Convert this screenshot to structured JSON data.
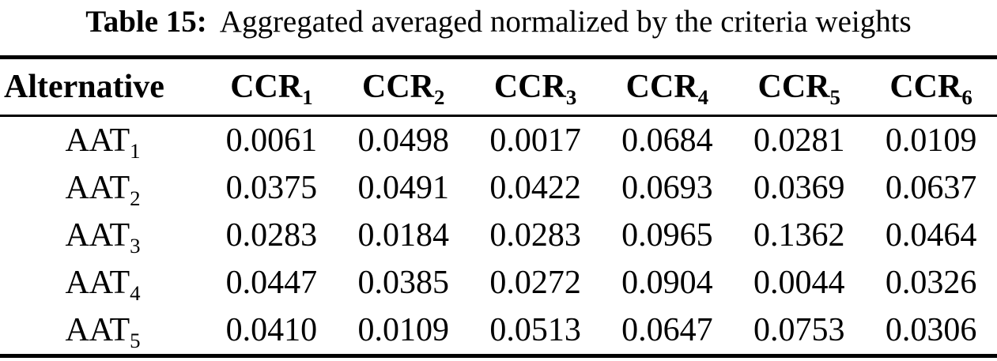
{
  "caption": {
    "label": "Table 15:",
    "text": "Aggregated averaged normalized by the criteria weights"
  },
  "table": {
    "header": {
      "alternative": "Alternative",
      "columns": [
        {
          "base": "CCR",
          "sub": "1"
        },
        {
          "base": "CCR",
          "sub": "2"
        },
        {
          "base": "CCR",
          "sub": "3"
        },
        {
          "base": "CCR",
          "sub": "4"
        },
        {
          "base": "CCR",
          "sub": "5"
        },
        {
          "base": "CCR",
          "sub": "6"
        }
      ]
    },
    "rows": [
      {
        "label": {
          "base": "AAT",
          "sub": "1"
        },
        "values": [
          "0.0061",
          "0.0498",
          "0.0017",
          "0.0684",
          "0.0281",
          "0.0109"
        ]
      },
      {
        "label": {
          "base": "AAT",
          "sub": "2"
        },
        "values": [
          "0.0375",
          "0.0491",
          "0.0422",
          "0.0693",
          "0.0369",
          "0.0637"
        ]
      },
      {
        "label": {
          "base": "AAT",
          "sub": "3"
        },
        "values": [
          "0.0283",
          "0.0184",
          "0.0283",
          "0.0965",
          "0.1362",
          "0.0464"
        ]
      },
      {
        "label": {
          "base": "AAT",
          "sub": "4"
        },
        "values": [
          "0.0447",
          "0.0385",
          "0.0272",
          "0.0904",
          "0.0044",
          "0.0326"
        ]
      },
      {
        "label": {
          "base": "AAT",
          "sub": "5"
        },
        "values": [
          "0.0410",
          "0.0109",
          "0.0513",
          "0.0647",
          "0.0753",
          "0.0306"
        ]
      }
    ]
  },
  "colors": {
    "text": "#000000",
    "background": "#ffffff",
    "rule": "#000000"
  }
}
